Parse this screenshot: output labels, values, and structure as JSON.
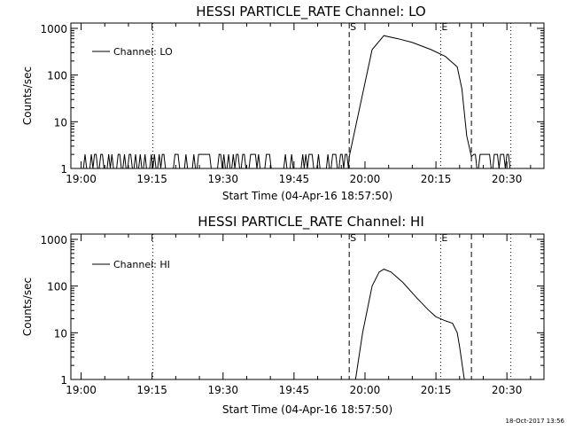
{
  "chart_data": [
    {
      "type": "line",
      "title": "HESSI PARTICLE_RATE Channel: LO",
      "xlabel": "Start Time (04-Apr-16 18:57:50)",
      "ylabel": "Counts/sec",
      "yscale": "log",
      "ylim": [
        1,
        1000
      ],
      "xlim": [
        "18:57:50",
        "20:37:50"
      ],
      "x_ticks": [
        "19:00",
        "19:15",
        "19:30",
        "19:45",
        "20:00",
        "20:15",
        "20:30"
      ],
      "y_ticks": [
        "1",
        "10",
        "100",
        "1000"
      ],
      "legend": {
        "label": "Channel: LO",
        "position": "top-left"
      },
      "markers": [
        {
          "label": "S",
          "time": "19:56:40",
          "style": "dashed"
        },
        {
          "label": "E",
          "time": "20:16:00",
          "style": "dotted"
        },
        {
          "label": "",
          "time": "20:22:30",
          "style": "dashed"
        },
        {
          "label": "",
          "time": "19:15:10",
          "style": "dotted"
        },
        {
          "label": "",
          "time": "20:30:50",
          "style": "dotted"
        }
      ],
      "series": [
        {
          "x": [
            "19:00:30",
            "19:56:40",
            "20:01:30",
            "20:04:00",
            "20:07:00",
            "20:10:00",
            "20:14:00",
            "20:17:00",
            "20:19:30",
            "20:20:30",
            "20:21:30",
            "20:22:30",
            "20:23:00"
          ],
          "y": [
            1.5,
            1.8,
            350,
            700,
            600,
            500,
            350,
            250,
            150,
            50,
            5,
            1.8,
            1.5
          ]
        }
      ],
      "noise_range": {
        "start": "19:00:30",
        "end": "20:31:00",
        "low": 1,
        "high": 2
      }
    },
    {
      "type": "line",
      "title": "HESSI PARTICLE_RATE Channel: HI",
      "xlabel": "Start Time (04-Apr-16 18:57:50)",
      "ylabel": "Counts/sec",
      "yscale": "log",
      "ylim": [
        1,
        1000
      ],
      "xlim": [
        "18:57:50",
        "20:37:50"
      ],
      "x_ticks": [
        "19:00",
        "19:15",
        "19:30",
        "19:45",
        "20:00",
        "20:15",
        "20:30"
      ],
      "y_ticks": [
        "1",
        "10",
        "100",
        "1000"
      ],
      "legend": {
        "label": "Channel: HI",
        "position": "top-left"
      },
      "markers": [
        {
          "label": "S",
          "time": "19:56:40",
          "style": "dashed"
        },
        {
          "label": "E",
          "time": "20:16:00",
          "style": "dotted"
        },
        {
          "label": "",
          "time": "20:22:30",
          "style": "dashed"
        },
        {
          "label": "",
          "time": "19:15:10",
          "style": "dotted"
        },
        {
          "label": "",
          "time": "20:30:50",
          "style": "dotted"
        }
      ],
      "series": [
        {
          "x": [
            "19:58:00",
            "19:59:30",
            "20:01:30",
            "20:03:00",
            "20:04:00",
            "20:05:30",
            "20:08:00",
            "20:11:00",
            "20:13:30",
            "20:15:00",
            "20:17:00",
            "20:18:30",
            "20:19:30",
            "20:20:00",
            "20:21:00"
          ],
          "y": [
            1,
            10,
            100,
            200,
            230,
            200,
            120,
            55,
            30,
            22,
            18,
            16,
            10,
            5,
            1
          ]
        }
      ]
    }
  ],
  "timestamp": "18-Oct-2017 13:56"
}
